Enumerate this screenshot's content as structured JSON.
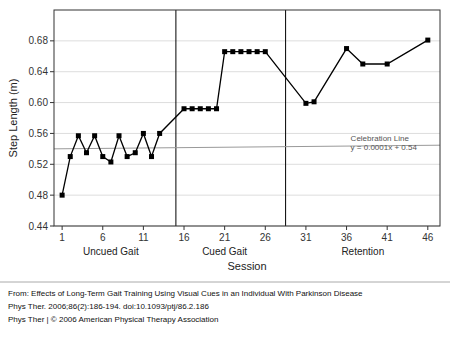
{
  "chart_data": {
    "type": "line",
    "xlabel": "Session",
    "ylabel": "Step Length (m)",
    "xlim": [
      0.0,
      47.5
    ],
    "ylim": [
      0.44,
      0.72
    ],
    "xticks": [
      1,
      6,
      11,
      16,
      21,
      26,
      31,
      36,
      41,
      46
    ],
    "yticks": [
      0.44,
      0.48,
      0.52,
      0.56,
      {
        "value": 0.6,
        "label": "0.60"
      },
      0.64,
      0.68
    ],
    "grid": true,
    "series": [
      {
        "color": "#000000",
        "marker": "square",
        "line_style": "solid",
        "x": [
          1,
          2,
          3,
          4,
          5,
          6,
          7,
          8,
          9,
          10,
          11,
          12,
          13,
          16,
          17,
          18,
          19,
          20,
          21,
          22,
          23,
          24,
          25,
          26,
          31,
          32,
          36,
          38,
          41,
          46
        ],
        "values": [
          0.48,
          0.53,
          0.557,
          0.535,
          0.557,
          0.53,
          0.523,
          0.557,
          0.53,
          0.535,
          0.56,
          0.53,
          0.56,
          0.592,
          0.592,
          0.592,
          0.592,
          0.592,
          0.666,
          0.666,
          0.666,
          0.666,
          0.666,
          0.666,
          0.599,
          0.601,
          0.67,
          0.65,
          0.65,
          0.681
        ]
      },
      {
        "color": "#999999",
        "line_style": "solid",
        "x": [
          0.0,
          47.5
        ],
        "values": [
          0.54,
          0.54475
        ]
      }
    ],
    "vlines": [
      15.0,
      28.5
    ],
    "phase_labels": [
      {
        "text": "Uncued Gait",
        "x": 7
      },
      {
        "text": "Cued Gait",
        "x": 21
      },
      {
        "text": "Retention",
        "x": 38
      }
    ],
    "annotations": [
      {
        "lines": [
          "Celebration Line",
          "y = 0.0001x + 0.54"
        ],
        "x": 36.5,
        "y": 0.548
      }
    ],
    "caption": [
      "From: Effects of Long-Term Gait Training Using Visual Cues in an Individual With Parkinson Disease",
      "Phys Ther. 2006;86(2):186-194. doi:10.1093/ptj/86.2.186",
      "Phys Ther | © 2006 American Physical Therapy Association"
    ]
  }
}
